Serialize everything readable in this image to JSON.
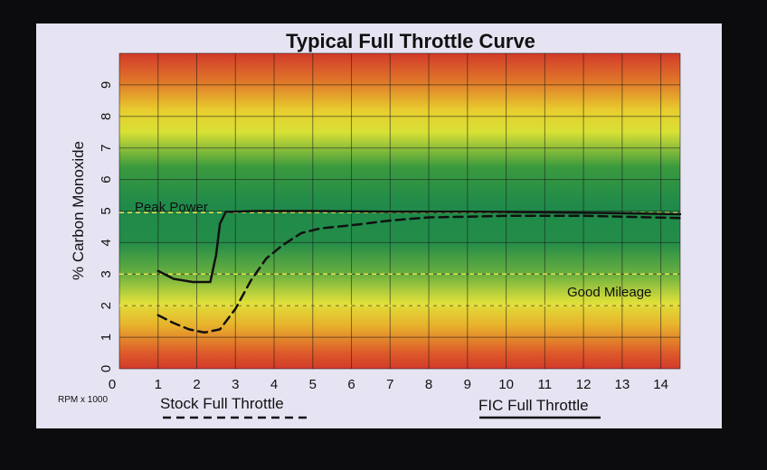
{
  "chart_data": {
    "type": "line",
    "title": "Typical Full Throttle Curve",
    "xlabel": "RPM x 1000",
    "ylabel": "% Carbon Monoxide",
    "xlim": [
      0,
      14.5
    ],
    "ylim": [
      0,
      10
    ],
    "x_ticks": [
      0,
      1,
      2,
      3,
      4,
      5,
      6,
      7,
      8,
      9,
      10,
      11,
      12,
      13,
      14
    ],
    "y_ticks": [
      0,
      1,
      2,
      3,
      4,
      5,
      6,
      7,
      8,
      9
    ],
    "grid": true,
    "background": "horizontal color bands: red at top and bottom, yellow, then green in the middle",
    "series": [
      {
        "name": "FIC Full Throttle",
        "style": "solid",
        "color": "#111111",
        "points": [
          [
            1,
            3.1
          ],
          [
            1.4,
            2.85
          ],
          [
            1.9,
            2.75
          ],
          [
            2.35,
            2.75
          ],
          [
            2.5,
            3.6
          ],
          [
            2.6,
            4.6
          ],
          [
            2.75,
            4.97
          ],
          [
            3.5,
            5.0
          ],
          [
            5,
            5.0
          ],
          [
            7,
            4.98
          ],
          [
            9,
            4.98
          ],
          [
            11,
            4.96
          ],
          [
            13,
            4.93
          ],
          [
            14.5,
            4.9
          ]
        ]
      },
      {
        "name": "Stock Full Throttle",
        "style": "dashed",
        "color": "#111111",
        "points": [
          [
            1,
            1.7
          ],
          [
            1.4,
            1.45
          ],
          [
            1.8,
            1.25
          ],
          [
            2.2,
            1.15
          ],
          [
            2.6,
            1.25
          ],
          [
            3.0,
            1.9
          ],
          [
            3.4,
            2.8
          ],
          [
            3.8,
            3.5
          ],
          [
            4.2,
            3.9
          ],
          [
            4.7,
            4.3
          ],
          [
            5.2,
            4.45
          ],
          [
            6,
            4.55
          ],
          [
            7,
            4.7
          ],
          [
            8,
            4.8
          ],
          [
            9,
            4.82
          ],
          [
            10,
            4.85
          ],
          [
            11,
            4.85
          ],
          [
            12,
            4.85
          ],
          [
            13,
            4.82
          ],
          [
            14.5,
            4.78
          ]
        ]
      }
    ],
    "reference_lines": [
      {
        "y": 3.0,
        "style": "dashed",
        "color": "#e8e050"
      },
      {
        "y": 2.0,
        "style": "dashed",
        "color": "#e8e050"
      },
      {
        "y": 4.95,
        "style": "dashed",
        "color": "#e8e050"
      }
    ],
    "annotations": [
      {
        "text": "Peak Power",
        "x": 1.0,
        "y": 5.05
      },
      {
        "text": "Good Mileage",
        "x": 11.0,
        "y": 2.2
      }
    ],
    "legend": [
      {
        "label": "Stock Full Throttle",
        "style": "dashed"
      },
      {
        "label": "FIC Full Throttle",
        "style": "solid"
      }
    ]
  }
}
